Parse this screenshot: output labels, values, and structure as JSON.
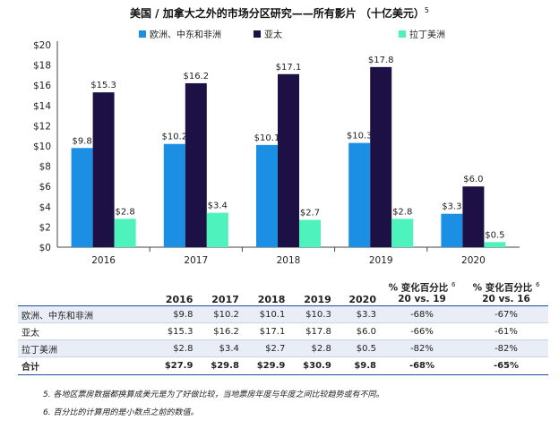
{
  "title": "美国 / 加拿大之外的市场分区研究——所有影片  （十亿美元）",
  "title_sup": "5",
  "colors": {
    "emea": "#1a8fe3",
    "apac": "#1d1045",
    "latam": "#4ef2bd",
    "rule": "#1f4e9c"
  },
  "chart_data": {
    "type": "bar",
    "title": "美国 / 加拿大之外的市场分区研究——所有影片  （十亿美元）",
    "categories": [
      "2016",
      "2017",
      "2018",
      "2019",
      "2020"
    ],
    "series": [
      {
        "name": "欧洲、中东和非洲",
        "values": [
          9.8,
          10.2,
          10.1,
          10.3,
          3.3
        ],
        "labels": [
          "$9.8",
          "$10.2",
          "$10.1",
          "$10.3",
          "$3.3"
        ]
      },
      {
        "name": "亚太",
        "values": [
          15.3,
          16.2,
          17.1,
          17.8,
          6.0
        ],
        "labels": [
          "$15.3",
          "$16.2",
          "$17.1",
          "$17.8",
          "$6.0"
        ]
      },
      {
        "name": "拉丁美洲",
        "values": [
          2.8,
          3.4,
          2.7,
          2.8,
          0.5
        ],
        "labels": [
          "$2.8",
          "$3.4",
          "$2.7",
          "$2.8",
          "$0.5"
        ]
      }
    ],
    "yticks": [
      "$0",
      "$2",
      "$4",
      "$6",
      "$8",
      "$10",
      "$12",
      "$14",
      "$16",
      "$18",
      "$20"
    ],
    "ylim": [
      0,
      20
    ],
    "xlabel": "",
    "ylabel": "",
    "legend": "top"
  },
  "table": {
    "headers": [
      "2016",
      "2017",
      "2018",
      "2019",
      "2020"
    ],
    "pct_headers": [
      {
        "line1": "% 变化百分比",
        "sup": "6",
        "line2": "20 vs. 19"
      },
      {
        "line1": "% 变化百分比",
        "sup": "6",
        "line2": "20 vs. 16"
      }
    ],
    "rows": [
      {
        "label": "欧洲、中东和非洲",
        "values": [
          "$9.8",
          "$10.2",
          "$10.1",
          "$10.3",
          "$3.3"
        ],
        "pct": [
          "-68%",
          "-67%"
        ]
      },
      {
        "label": "亚太",
        "values": [
          "$15.3",
          "$16.2",
          "$17.1",
          "$17.8",
          "$6.0"
        ],
        "pct": [
          "-66%",
          "-61%"
        ]
      },
      {
        "label": "拉丁美洲",
        "values": [
          "$2.8",
          "$3.4",
          "$2.7",
          "$2.8",
          "$0.5"
        ],
        "pct": [
          "-82%",
          "-82%"
        ]
      }
    ],
    "total": {
      "label": "合计",
      "values": [
        "$27.9",
        "$29.8",
        "$29.9",
        "$30.9",
        "$9.8"
      ],
      "pct": [
        "-68%",
        "-65%"
      ]
    }
  },
  "footnotes": [
    "5.  各地区票房数据都换算成美元是为了好做比较，当地票房年度与年度之间比较趋势或有不同。",
    "6.  百分比的计算用的是小数点之前的数值。"
  ]
}
